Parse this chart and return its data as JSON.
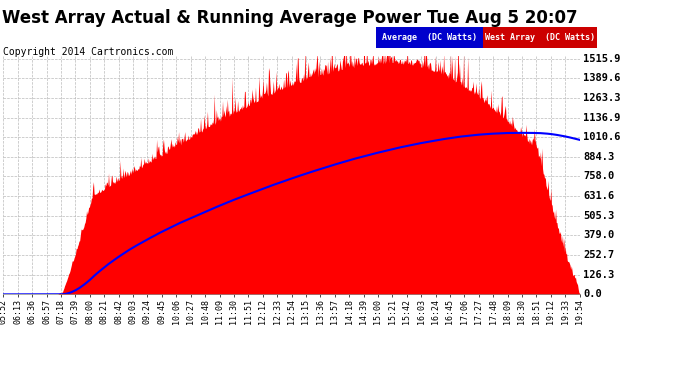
{
  "title": "West Array Actual & Running Average Power Tue Aug 5 20:07",
  "copyright": "Copyright 2014 Cartronics.com",
  "legend_labels": [
    "Average  (DC Watts)",
    "West Array  (DC Watts)"
  ],
  "ymin": 0.0,
  "ymax": 1515.9,
  "yticks": [
    0.0,
    126.3,
    252.7,
    379.0,
    505.3,
    631.6,
    758.0,
    884.3,
    1010.6,
    1136.9,
    1263.3,
    1389.6,
    1515.9
  ],
  "background_color": "#ffffff",
  "plot_bg_color": "#ffffff",
  "grid_color": "#bbbbbb",
  "fill_color": "#ff0000",
  "avg_line_color": "#0000ff",
  "legend_avg_bg": "#0000cc",
  "legend_west_bg": "#cc0000",
  "title_fontsize": 12,
  "copyright_fontsize": 7,
  "tick_fontsize": 6,
  "ytick_fontsize": 7.5,
  "x_labels": [
    "05:52",
    "06:13",
    "06:36",
    "06:57",
    "07:18",
    "07:39",
    "08:00",
    "08:21",
    "08:42",
    "09:03",
    "09:24",
    "09:45",
    "10:06",
    "10:27",
    "10:48",
    "11:09",
    "11:30",
    "11:51",
    "12:12",
    "12:33",
    "12:54",
    "13:15",
    "13:36",
    "13:57",
    "14:18",
    "14:39",
    "15:00",
    "15:21",
    "15:42",
    "16:03",
    "16:24",
    "16:45",
    "17:06",
    "17:27",
    "17:48",
    "18:09",
    "18:30",
    "18:51",
    "19:12",
    "19:33",
    "19:54"
  ]
}
